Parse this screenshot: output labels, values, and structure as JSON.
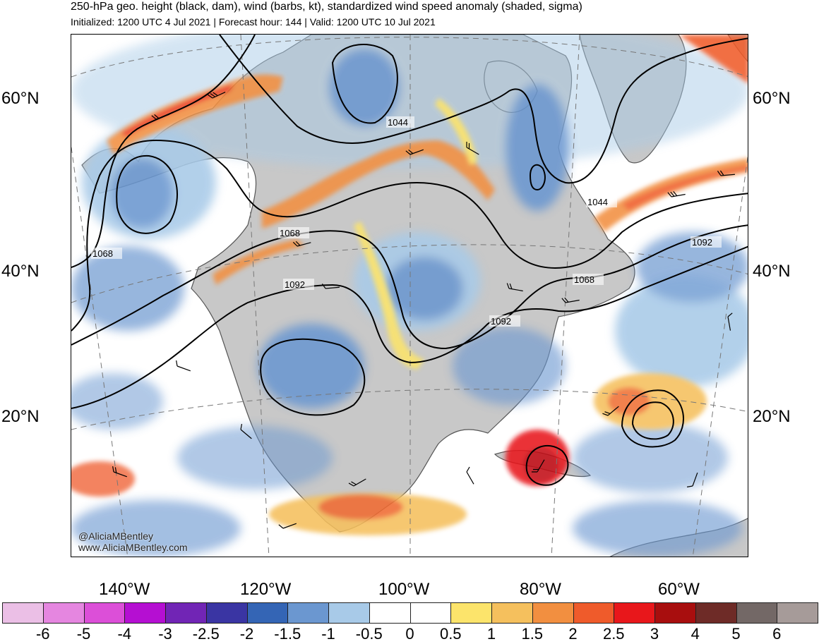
{
  "header": {
    "title": "250-hPa geo. height (black, dam), wind (barbs, kt), standardized wind speed anomaly (shaded, sigma)",
    "subtitle": "Initialized: 1200 UTC 4 Jul 2021 | Forecast hour: 144 | Valid: 1200 UTC 10 Jul 2021"
  },
  "map": {
    "lat_labels": [
      "60°N",
      "40°N",
      "20°N"
    ],
    "lon_labels": [
      "140°W",
      "120°W",
      "100°W",
      "80°W",
      "60°W"
    ],
    "contour_labels": [
      "1044",
      "1044",
      "1068",
      "1068",
      "1068",
      "1092",
      "1092",
      "1092"
    ],
    "credit_line1": "@AliciaMBentley",
    "credit_line2": "www.AliciaMBentley.com",
    "colors": {
      "land": "#c8c8c8",
      "ocean": "#ffffff",
      "contour": "#000000",
      "coastline": "#555555"
    }
  },
  "colorbar": {
    "labels": [
      "-6",
      "-5",
      "-4",
      "-3",
      "-2.5",
      "-2",
      "-1.5",
      "-1",
      "-0.5",
      "0",
      "0.5",
      "1",
      "1.5",
      "2",
      "2.5",
      "3",
      "4",
      "5",
      "6"
    ],
    "colors": [
      "#ebbfe6",
      "#e586e0",
      "#dc4fd8",
      "#b50fd2",
      "#7125b5",
      "#3a35a3",
      "#3465b5",
      "#6b97d0",
      "#a8cae8",
      "#ffffff",
      "#ffffff",
      "#fce46b",
      "#f5c05d",
      "#f28f40",
      "#ef5b2b",
      "#e8171b",
      "#a80e0e",
      "#6e2b27",
      "#736866",
      "#a69b99"
    ]
  }
}
